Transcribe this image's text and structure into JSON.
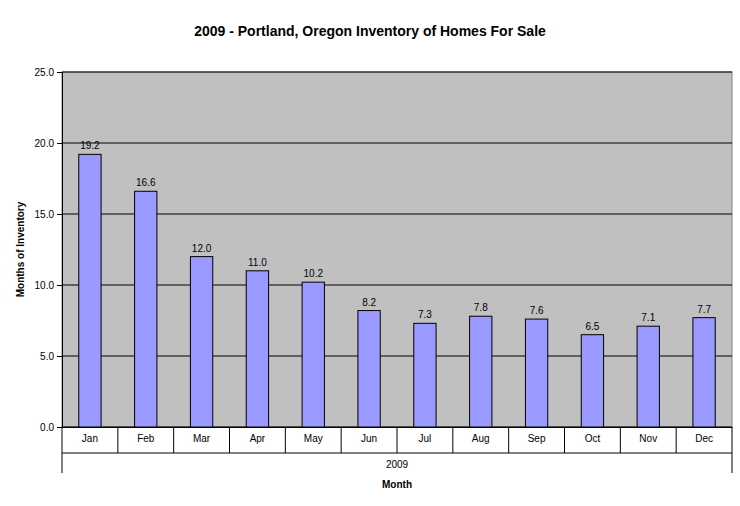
{
  "chart_data": {
    "type": "bar",
    "title": "2009 - Portland, Oregon Inventory of Homes For Sale",
    "x_label": "Month",
    "y_label": "Months of Inventory",
    "annotations": [
      "2009"
    ],
    "categories": [
      "Jan",
      "Feb",
      "Mar",
      "Apr",
      "May",
      "Jun",
      "Jul",
      "Aug",
      "Sep",
      "Oct",
      "Nov",
      "Dec"
    ],
    "values": [
      19.2,
      16.6,
      12.0,
      11.0,
      10.2,
      8.2,
      7.3,
      7.8,
      7.6,
      6.5,
      7.1,
      7.7
    ],
    "value_labels": [
      "19.2",
      "16.6",
      "12.0",
      "11.0",
      "10.2",
      "8.2",
      "7.3",
      "7.8",
      "7.6",
      "6.5",
      "7.1",
      "7.7"
    ],
    "data_labels": true,
    "color": "#9999ff",
    "ylim": [
      0,
      25
    ],
    "yticks": [
      {
        "value": 0,
        "label": "0.0"
      },
      {
        "value": 5,
        "label": "5.0"
      },
      {
        "value": 10,
        "label": "10.0"
      },
      {
        "value": 15,
        "label": "15.0"
      },
      {
        "value": 20,
        "label": "20.0"
      },
      {
        "value": 25,
        "label": "25.0"
      }
    ],
    "grid": true
  }
}
